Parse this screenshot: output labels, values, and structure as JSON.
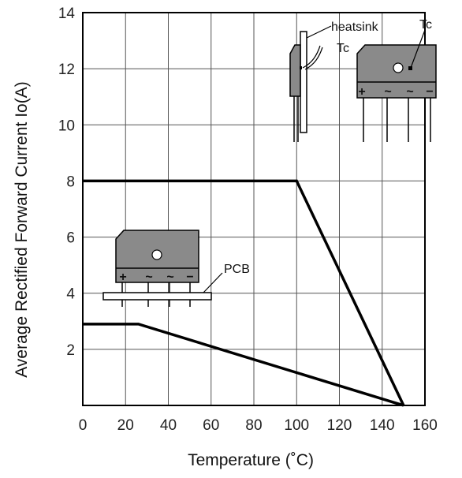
{
  "chart_data": {
    "type": "line",
    "xlabel": "Temperature (˚C)",
    "ylabel": "Average Rectified Forward Current Io(A)",
    "xlim": [
      0,
      160
    ],
    "ylim": [
      0,
      14
    ],
    "xticks": [
      "0",
      "20",
      "40",
      "60",
      "80",
      "100",
      "120",
      "140",
      "160"
    ],
    "yticks": [
      "2",
      "4",
      "6",
      "8",
      "10",
      "12",
      "14"
    ],
    "grid": true,
    "series": [
      {
        "name": "heatsink",
        "x": [
          0,
          100,
          150
        ],
        "y": [
          8,
          8,
          0
        ]
      },
      {
        "name": "PCB",
        "x": [
          0,
          26,
          150
        ],
        "y": [
          2.9,
          2.9,
          0
        ]
      }
    ],
    "annotations": {
      "heatsink": "heatsink",
      "tc_side": "Tc",
      "tc_top": "Tc",
      "pcb": "PCB"
    },
    "pin_marks": [
      "+",
      "~",
      "~",
      "−"
    ],
    "colors": {
      "line": "#000000",
      "grid": "#555555",
      "package_body": "#808080",
      "background": "#ffffff"
    }
  }
}
